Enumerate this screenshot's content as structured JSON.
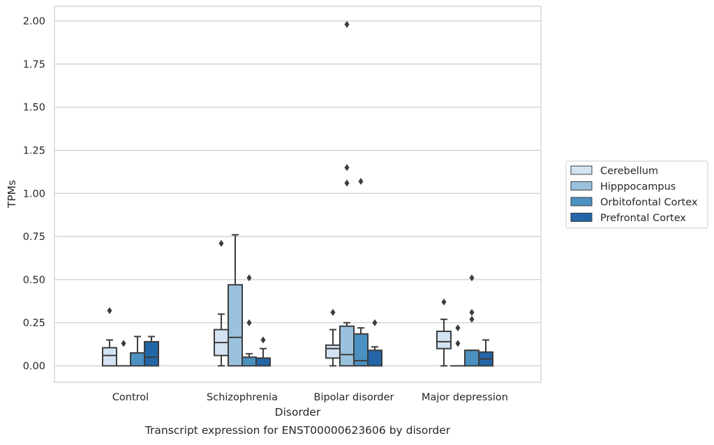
{
  "chart_data": {
    "type": "box",
    "title": "Transcript expression for ENST00000623606 by disorder",
    "xlabel": "Disorder",
    "ylabel": "TPMs",
    "ylim": [
      -0.1,
      2.08
    ],
    "yticks": [
      "0.00",
      "0.25",
      "0.50",
      "0.75",
      "1.00",
      "1.25",
      "1.50",
      "1.75",
      "2.00"
    ],
    "grid": "horizontal",
    "legend_position": "right",
    "categories": [
      "Control",
      "Schizophrenia",
      "Bipolar disorder",
      "Major depression"
    ],
    "series": [
      {
        "name": "Cerebellum",
        "color": "#d3e3f2",
        "boxes": [
          {
            "whisker_low": 0.0,
            "q1": 0.0,
            "median": 0.06,
            "q3": 0.105,
            "whisker_high": 0.15,
            "outliers": [
              0.32
            ]
          },
          {
            "whisker_low": 0.0,
            "q1": 0.06,
            "median": 0.135,
            "q3": 0.21,
            "whisker_high": 0.3,
            "outliers": [
              0.71
            ]
          },
          {
            "whisker_low": 0.0,
            "q1": 0.045,
            "median": 0.1,
            "q3": 0.12,
            "whisker_high": 0.21,
            "outliers": [
              0.31
            ]
          },
          {
            "whisker_low": 0.0,
            "q1": 0.1,
            "median": 0.14,
            "q3": 0.2,
            "whisker_high": 0.27,
            "outliers": [
              0.37
            ]
          }
        ]
      },
      {
        "name": "Hipppocampus",
        "color": "#9ac2de",
        "boxes": [
          {
            "whisker_low": 0.0,
            "q1": 0.0,
            "median": 0.0,
            "q3": 0.0,
            "whisker_high": 0.0,
            "outliers": [
              0.13
            ]
          },
          {
            "whisker_low": 0.0,
            "q1": 0.0,
            "median": 0.165,
            "q3": 0.47,
            "whisker_high": 0.76,
            "outliers": []
          },
          {
            "whisker_low": 0.0,
            "q1": 0.0,
            "median": 0.065,
            "q3": 0.23,
            "whisker_high": 0.25,
            "outliers": [
              1.06,
              1.15,
              1.98
            ]
          },
          {
            "whisker_low": 0.0,
            "q1": 0.0,
            "median": 0.0,
            "q3": 0.0,
            "whisker_high": 0.0,
            "outliers": [
              0.13,
              0.22
            ]
          }
        ]
      },
      {
        "name": "Orbitofontal Cortex",
        "color": "#4b91c2",
        "boxes": [
          {
            "whisker_low": 0.0,
            "q1": 0.0,
            "median": 0.0,
            "q3": 0.075,
            "whisker_high": 0.17,
            "outliers": []
          },
          {
            "whisker_low": 0.0,
            "q1": 0.0,
            "median": 0.0,
            "q3": 0.05,
            "whisker_high": 0.07,
            "outliers": [
              0.25,
              0.51
            ]
          },
          {
            "whisker_low": 0.0,
            "q1": 0.0,
            "median": 0.03,
            "q3": 0.185,
            "whisker_high": 0.22,
            "outliers": [
              1.07
            ]
          },
          {
            "whisker_low": 0.0,
            "q1": 0.0,
            "median": 0.0,
            "q3": 0.09,
            "whisker_high": 0.09,
            "outliers": [
              0.27,
              0.31,
              0.51
            ]
          }
        ]
      },
      {
        "name": "Prefrontal Cortex",
        "color": "#2366a8",
        "boxes": [
          {
            "whisker_low": 0.0,
            "q1": 0.0,
            "median": 0.05,
            "q3": 0.14,
            "whisker_high": 0.17,
            "outliers": []
          },
          {
            "whisker_low": 0.0,
            "q1": 0.0,
            "median": 0.0,
            "q3": 0.045,
            "whisker_high": 0.1,
            "outliers": [
              0.15
            ]
          },
          {
            "whisker_low": 0.0,
            "q1": 0.0,
            "median": 0.0,
            "q3": 0.09,
            "whisker_high": 0.11,
            "outliers": [
              0.25
            ]
          },
          {
            "whisker_low": 0.0,
            "q1": 0.0,
            "median": 0.04,
            "q3": 0.08,
            "whisker_high": 0.15,
            "outliers": []
          }
        ]
      }
    ]
  }
}
